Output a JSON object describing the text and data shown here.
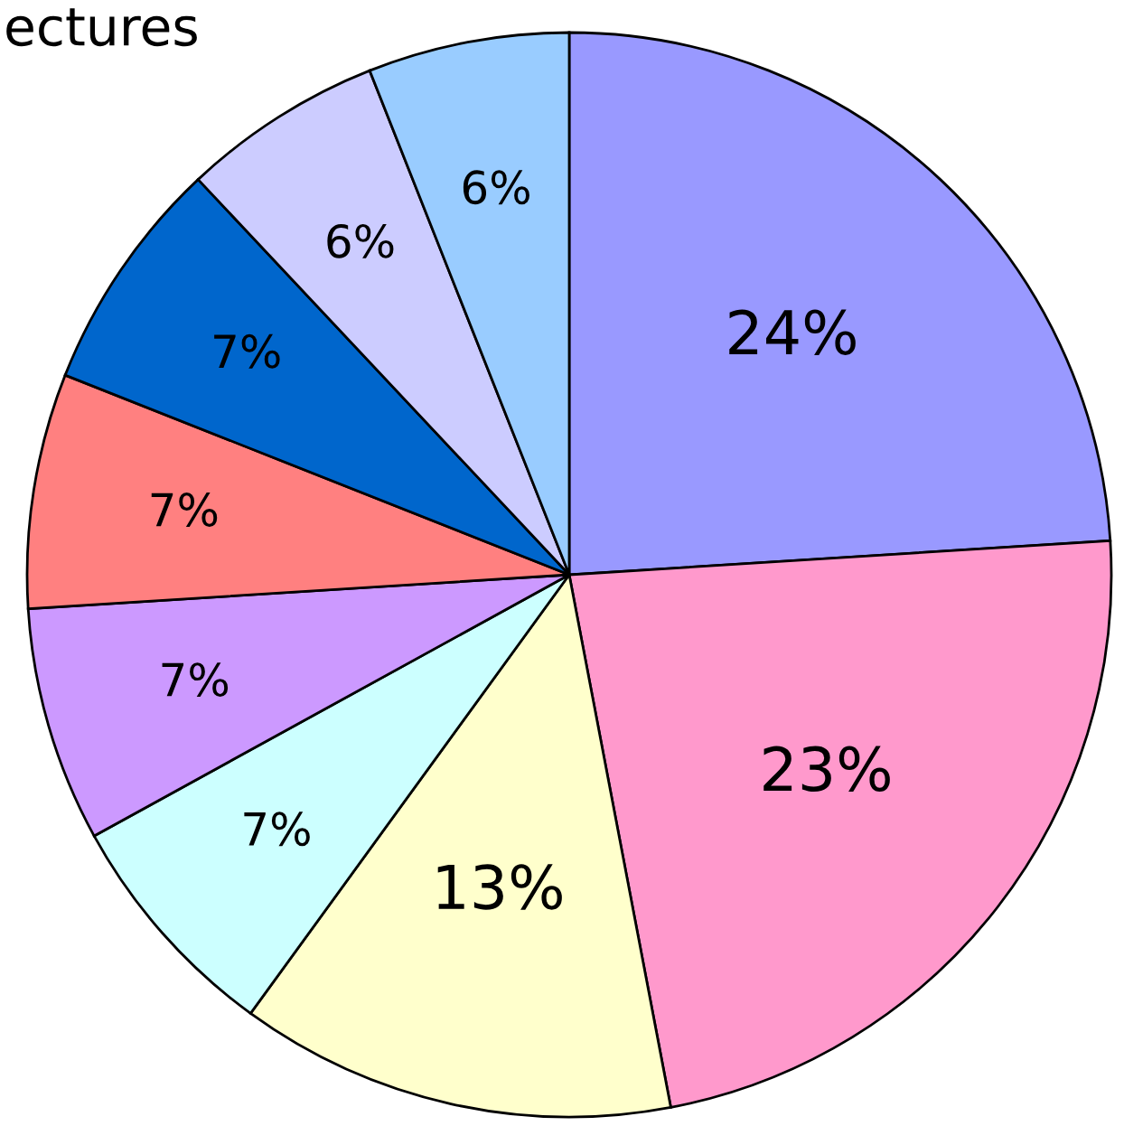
{
  "chart_data": {
    "type": "pie",
    "title": "ectures",
    "categories": [
      null,
      null,
      null,
      null,
      null,
      null,
      null,
      null,
      null
    ],
    "values": [
      24,
      23,
      13,
      7,
      7,
      7,
      7,
      6,
      6
    ],
    "colors": [
      "#9999ff",
      "#ff99cc",
      "#ffffcc",
      "#ccffff",
      "#cc99ff",
      "#ff8080",
      "#0066cc",
      "#ccccff",
      "#99ccff"
    ],
    "value_labels": [
      "24%",
      "23%",
      "13%",
      "7%",
      "7%",
      "7%",
      "7%",
      "6%",
      "6%"
    ]
  }
}
